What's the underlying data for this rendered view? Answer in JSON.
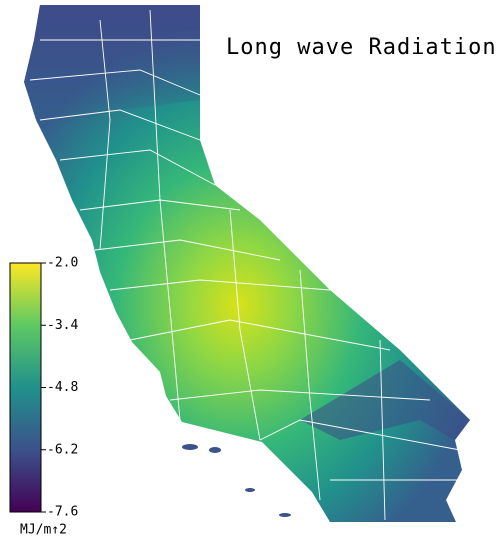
{
  "title": "Long wave Radiation",
  "colorbar": {
    "lim": [
      -7.6,
      -2
    ],
    "ticks": [
      {
        "value": -2,
        "label": "-2.0"
      },
      {
        "value": -3.4,
        "label": "-3.4"
      },
      {
        "value": -4.8,
        "label": "-4.8"
      },
      {
        "value": -6.2,
        "label": "-6.2"
      },
      {
        "value": -7.6,
        "label": "-7.6"
      }
    ],
    "unit": "MJ/m↑2",
    "colors": [
      "#440154",
      "#3b528b",
      "#21918c",
      "#5ec962",
      "#fde725"
    ]
  }
}
